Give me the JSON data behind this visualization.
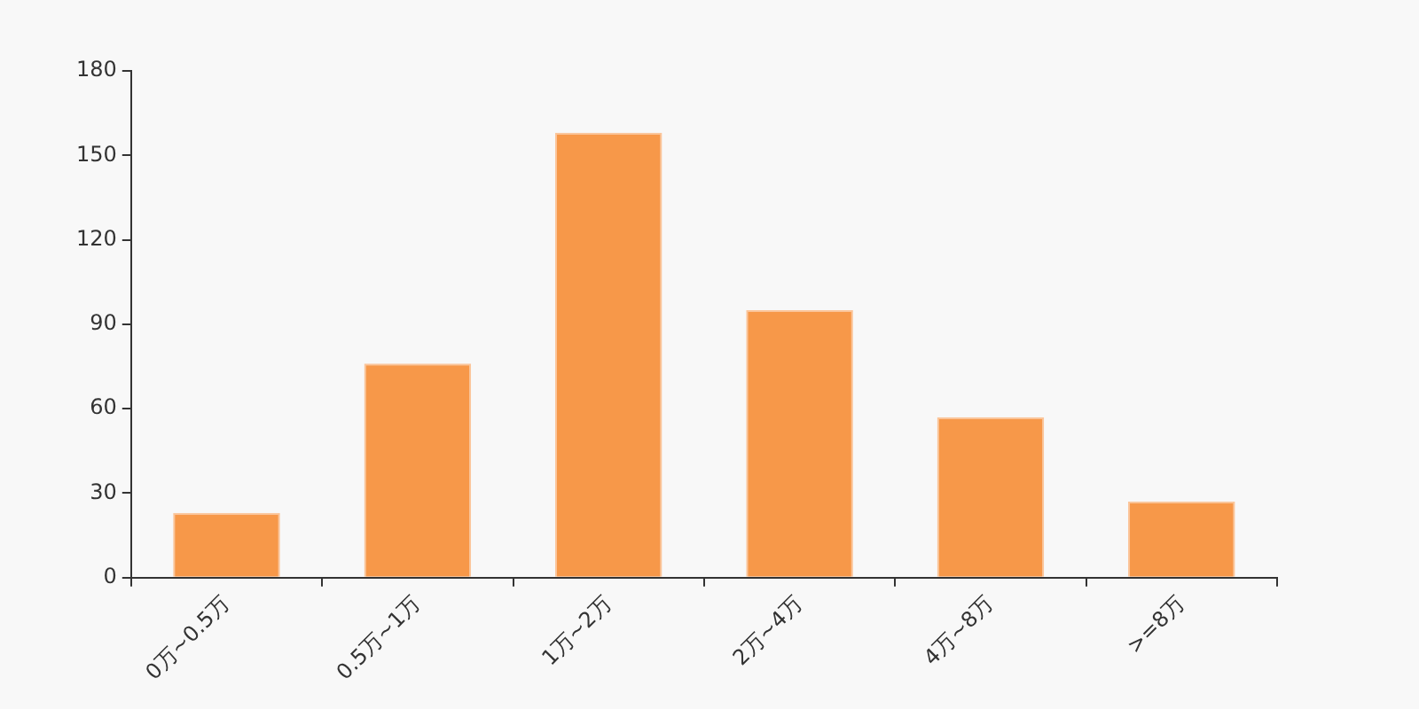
{
  "chart_data": {
    "type": "bar",
    "categories": [
      "0万~0.5万",
      "0.5万~1万",
      "1万~2万",
      "2万~4万",
      "4万~8万",
      ">=8万"
    ],
    "values": [
      23,
      76,
      158,
      95,
      57,
      27
    ],
    "color": "#f79849",
    "ylim": [
      0,
      180
    ],
    "yticks": [
      0,
      30,
      60,
      90,
      120,
      150,
      180
    ],
    "grid": false,
    "legend": false
  }
}
